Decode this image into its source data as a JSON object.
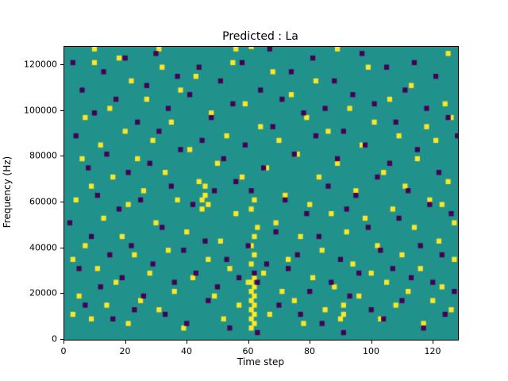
{
  "chart_data": {
    "type": "heatmap",
    "title": "Predicted : La",
    "xlabel": "Time step",
    "ylabel": "Frequency (Hz)",
    "x_range": [
      0,
      128
    ],
    "y_range_hz": [
      0,
      128000
    ],
    "xticks": [
      0,
      20,
      40,
      60,
      80,
      100,
      120
    ],
    "yticks": [
      0,
      20000,
      40000,
      60000,
      80000,
      100000,
      120000
    ],
    "grid": false,
    "legend": "none",
    "colors": {
      "background_mid": "#21918c",
      "high": "#fde725",
      "low": "#440154",
      "axis": "#000000"
    },
    "value_meaning": {
      "background_mid": 0,
      "high": 1,
      "low": -1
    },
    "cell_size": {
      "w_steps": 1.6,
      "h_khz": 2.2
    },
    "cells_high": [
      [
        2,
        10
      ],
      [
        2,
        34
      ],
      [
        3,
        60
      ],
      [
        4,
        18
      ],
      [
        5,
        78
      ],
      [
        6,
        40
      ],
      [
        6,
        96
      ],
      [
        8,
        8
      ],
      [
        8,
        66
      ],
      [
        9,
        120
      ],
      [
        9,
        126
      ],
      [
        10,
        30
      ],
      [
        11,
        84
      ],
      [
        12,
        52
      ],
      [
        13,
        14
      ],
      [
        14,
        100
      ],
      [
        15,
        70
      ],
      [
        16,
        24
      ],
      [
        17,
        122
      ],
      [
        18,
        44
      ],
      [
        19,
        90
      ],
      [
        20,
        6
      ],
      [
        20,
        58
      ],
      [
        21,
        112
      ],
      [
        22,
        36
      ],
      [
        23,
        78
      ],
      [
        24,
        16
      ],
      [
        25,
        64
      ],
      [
        26,
        104
      ],
      [
        27,
        28
      ],
      [
        28,
        86
      ],
      [
        29,
        50
      ],
      [
        30,
        12
      ],
      [
        30,
        126
      ],
      [
        31,
        118
      ],
      [
        32,
        72
      ],
      [
        33,
        38
      ],
      [
        34,
        94
      ],
      [
        35,
        20
      ],
      [
        36,
        60
      ],
      [
        37,
        108
      ],
      [
        38,
        4
      ],
      [
        39,
        46
      ],
      [
        40,
        82
      ],
      [
        41,
        26
      ],
      [
        42,
        114
      ],
      [
        43,
        68
      ],
      [
        44,
        56
      ],
      [
        44,
        60
      ],
      [
        45,
        62
      ],
      [
        45,
        66
      ],
      [
        46,
        58
      ],
      [
        46,
        34
      ],
      [
        47,
        98
      ],
      [
        48,
        18
      ],
      [
        49,
        76
      ],
      [
        50,
        42
      ],
      [
        51,
        8
      ],
      [
        52,
        88
      ],
      [
        53,
        30
      ],
      [
        54,
        120
      ],
      [
        55,
        54
      ],
      [
        55,
        126
      ],
      [
        56,
        14
      ],
      [
        57,
        70
      ],
      [
        58,
        102
      ],
      [
        59,
        24
      ],
      [
        60,
        4
      ],
      [
        60,
        8
      ],
      [
        60,
        12
      ],
      [
        60,
        16
      ],
      [
        60,
        20
      ],
      [
        60,
        24
      ],
      [
        61,
        6
      ],
      [
        61,
        10
      ],
      [
        61,
        14
      ],
      [
        61,
        18
      ],
      [
        61,
        22
      ],
      [
        61,
        26
      ],
      [
        60,
        32
      ],
      [
        61,
        36
      ],
      [
        60,
        40
      ],
      [
        61,
        44
      ],
      [
        60,
        56
      ],
      [
        61,
        60
      ],
      [
        62,
        48
      ],
      [
        60,
        127
      ],
      [
        63,
        92
      ],
      [
        64,
        28
      ],
      [
        65,
        74
      ],
      [
        66,
        10
      ],
      [
        67,
        116
      ],
      [
        68,
        50
      ],
      [
        69,
        86
      ],
      [
        70,
        20
      ],
      [
        71,
        62
      ],
      [
        72,
        34
      ],
      [
        73,
        106
      ],
      [
        74,
        16
      ],
      [
        75,
        80
      ],
      [
        76,
        44
      ],
      [
        77,
        6
      ],
      [
        78,
        96
      ],
      [
        79,
        58
      ],
      [
        80,
        26
      ],
      [
        81,
        112
      ],
      [
        82,
        70
      ],
      [
        83,
        38
      ],
      [
        84,
        12
      ],
      [
        85,
        90
      ],
      [
        86,
        54
      ],
      [
        87,
        22
      ],
      [
        88,
        76
      ],
      [
        88,
        126
      ],
      [
        89,
        8
      ],
      [
        90,
        10
      ],
      [
        90,
        14
      ],
      [
        91,
        46
      ],
      [
        92,
        100
      ],
      [
        93,
        32
      ],
      [
        94,
        64
      ],
      [
        95,
        18
      ],
      [
        96,
        84
      ],
      [
        97,
        52
      ],
      [
        98,
        118
      ],
      [
        99,
        28
      ],
      [
        100,
        94
      ],
      [
        101,
        40
      ],
      [
        102,
        8
      ],
      [
        103,
        72
      ],
      [
        104,
        24
      ],
      [
        105,
        104
      ],
      [
        106,
        56
      ],
      [
        107,
        14
      ],
      [
        108,
        88
      ],
      [
        109,
        36
      ],
      [
        110,
        66
      ],
      [
        111,
        20
      ],
      [
        112,
        110
      ],
      [
        113,
        48
      ],
      [
        114,
        78
      ],
      [
        115,
        30
      ],
      [
        116,
        6
      ],
      [
        117,
        92
      ],
      [
        118,
        60
      ],
      [
        119,
        16
      ],
      [
        120,
        86
      ],
      [
        121,
        42
      ],
      [
        122,
        22
      ],
      [
        123,
        102
      ],
      [
        124,
        68
      ],
      [
        125,
        12
      ],
      [
        126,
        50
      ],
      [
        126,
        34
      ],
      [
        125,
        96
      ],
      [
        124,
        124
      ],
      [
        122,
        58
      ]
    ],
    "cells_low": [
      [
        1,
        50
      ],
      [
        2,
        120
      ],
      [
        3,
        88
      ],
      [
        4,
        30
      ],
      [
        5,
        108
      ],
      [
        6,
        14
      ],
      [
        7,
        74
      ],
      [
        8,
        44
      ],
      [
        9,
        98
      ],
      [
        10,
        62
      ],
      [
        11,
        22
      ],
      [
        12,
        116
      ],
      [
        13,
        80
      ],
      [
        14,
        36
      ],
      [
        15,
        8
      ],
      [
        16,
        104
      ],
      [
        17,
        56
      ],
      [
        18,
        26
      ],
      [
        19,
        122
      ],
      [
        20,
        72
      ],
      [
        21,
        40
      ],
      [
        22,
        12
      ],
      [
        23,
        94
      ],
      [
        24,
        60
      ],
      [
        25,
        18
      ],
      [
        26,
        110
      ],
      [
        27,
        76
      ],
      [
        28,
        32
      ],
      [
        29,
        124
      ],
      [
        30,
        90
      ],
      [
        31,
        48
      ],
      [
        32,
        10
      ],
      [
        33,
        100
      ],
      [
        34,
        66
      ],
      [
        35,
        24
      ],
      [
        36,
        114
      ],
      [
        37,
        82
      ],
      [
        38,
        38
      ],
      [
        39,
        6
      ],
      [
        40,
        106
      ],
      [
        41,
        58
      ],
      [
        42,
        28
      ],
      [
        43,
        118
      ],
      [
        44,
        86
      ],
      [
        45,
        42
      ],
      [
        46,
        16
      ],
      [
        47,
        96
      ],
      [
        48,
        64
      ],
      [
        49,
        22
      ],
      [
        50,
        112
      ],
      [
        51,
        78
      ],
      [
        52,
        34
      ],
      [
        53,
        4
      ],
      [
        54,
        102
      ],
      [
        55,
        68
      ],
      [
        56,
        26
      ],
      [
        57,
        120
      ],
      [
        58,
        84
      ],
      [
        59,
        40
      ],
      [
        60,
        64
      ],
      [
        61,
        28
      ],
      [
        62,
        2
      ],
      [
        62,
        24
      ],
      [
        63,
        108
      ],
      [
        64,
        74
      ],
      [
        65,
        32
      ],
      [
        66,
        126
      ],
      [
        67,
        92
      ],
      [
        68,
        46
      ],
      [
        69,
        14
      ],
      [
        70,
        104
      ],
      [
        71,
        60
      ],
      [
        72,
        30
      ],
      [
        73,
        116
      ],
      [
        74,
        80
      ],
      [
        75,
        36
      ],
      [
        76,
        10
      ],
      [
        77,
        98
      ],
      [
        78,
        54
      ],
      [
        79,
        20
      ],
      [
        80,
        122
      ],
      [
        81,
        88
      ],
      [
        82,
        44
      ],
      [
        83,
        6
      ],
      [
        84,
        100
      ],
      [
        85,
        66
      ],
      [
        86,
        24
      ],
      [
        87,
        112
      ],
      [
        88,
        78
      ],
      [
        89,
        34
      ],
      [
        90,
        2
      ],
      [
        90,
        90
      ],
      [
        91,
        56
      ],
      [
        92,
        18
      ],
      [
        93,
        106
      ],
      [
        94,
        62
      ],
      [
        95,
        28
      ],
      [
        96,
        124
      ],
      [
        97,
        84
      ],
      [
        98,
        48
      ],
      [
        99,
        12
      ],
      [
        100,
        102
      ],
      [
        101,
        70
      ],
      [
        102,
        38
      ],
      [
        103,
        8
      ],
      [
        104,
        118
      ],
      [
        105,
        76
      ],
      [
        106,
        30
      ],
      [
        107,
        94
      ],
      [
        108,
        52
      ],
      [
        109,
        16
      ],
      [
        110,
        108
      ],
      [
        111,
        64
      ],
      [
        112,
        26
      ],
      [
        113,
        120
      ],
      [
        114,
        82
      ],
      [
        115,
        40
      ],
      [
        116,
        4
      ],
      [
        117,
        100
      ],
      [
        118,
        58
      ],
      [
        119,
        24
      ],
      [
        120,
        114
      ],
      [
        121,
        72
      ],
      [
        122,
        36
      ],
      [
        123,
        10
      ],
      [
        124,
        96
      ],
      [
        125,
        54
      ],
      [
        126,
        20
      ],
      [
        127,
        88
      ]
    ]
  }
}
